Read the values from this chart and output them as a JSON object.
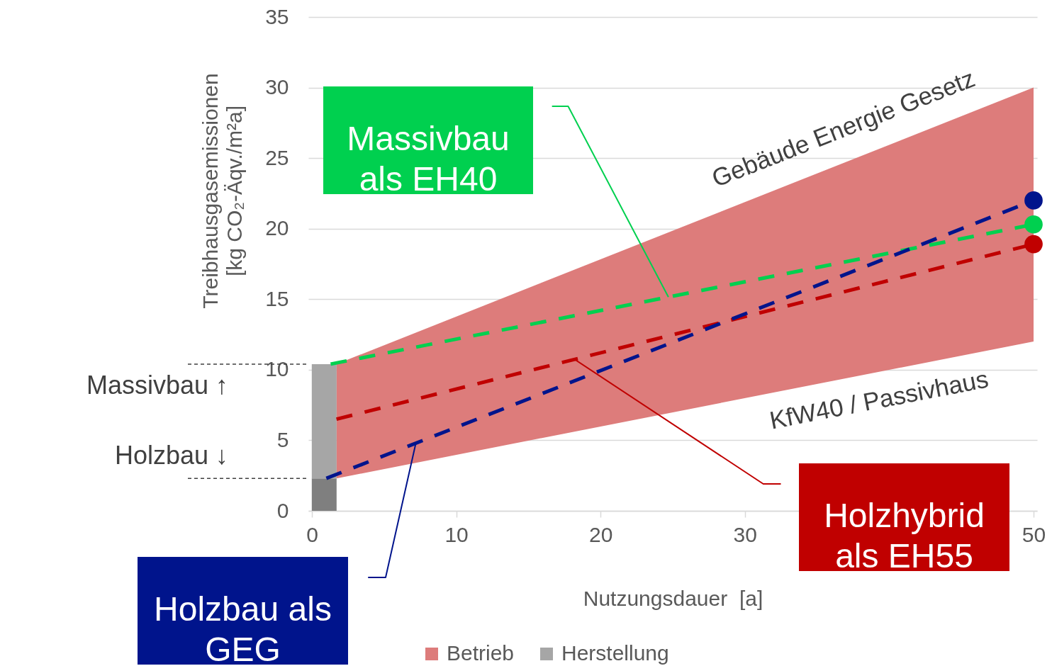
{
  "chart_data": {
    "type": "line",
    "xlabel": "Nutzungsdauer  [a]",
    "ylabel": "Treibhausgasemissionen  [kg CO₂-Äqv./m²a]",
    "xlim": [
      0,
      50
    ],
    "xticks": [
      0,
      10,
      20,
      30,
      50
    ],
    "ylim": [
      0,
      35
    ],
    "yticks": [
      0,
      5,
      10,
      15,
      20,
      25,
      30,
      35
    ],
    "grid": "y",
    "legend": "bottom",
    "stacked": true,
    "line_style": "dashed",
    "series": [
      {
        "name": "Betrieb",
        "type": "area",
        "color": "#dd7c7b",
        "x": [
          1.7,
          50
        ],
        "values": [
          null,
          null
        ],
        "lower": [
          2.3,
          12
        ],
        "upper": [
          10.4,
          30
        ]
      },
      {
        "type": "bar",
        "color": "#7f7f7f",
        "x": [
          0.85
        ],
        "values": [
          2.3
        ]
      },
      {
        "name": "Herstellung",
        "type": "bar",
        "color": "#a6a6a6",
        "x": [
          0.85
        ],
        "values": [
          8.1
        ]
      },
      {
        "name": "Massivbau als EH40",
        "color": "#00d04f",
        "x": [
          1.3,
          50
        ],
        "values": [
          10.4,
          20.3
        ]
      },
      {
        "name": "Holzhybrid als EH55",
        "color": "#c00000",
        "x": [
          1.7,
          50
        ],
        "values": [
          6.5,
          18.9
        ]
      },
      {
        "name": "Holzbau als GEG",
        "color": "#00148c",
        "x": [
          1,
          50
        ],
        "values": [
          2.3,
          22.0
        ]
      },
      {
        "type": "scatter",
        "color": "#00d04f",
        "marker": "circle",
        "x": [
          50
        ],
        "values": [
          20.3
        ]
      },
      {
        "type": "scatter",
        "color": "#c00000",
        "marker": "circle",
        "x": [
          50
        ],
        "values": [
          18.9
        ]
      },
      {
        "type": "scatter",
        "color": "#00148c",
        "marker": "circle",
        "x": [
          50
        ],
        "values": [
          22.0
        ]
      }
    ],
    "ref_lines": [
      {
        "axis": "y",
        "value": 10.4,
        "label": "Massivbau ↑",
        "color": "#404040",
        "line_style": "dashed"
      },
      {
        "axis": "y",
        "value": 2.3,
        "label": "Holzbau ↓",
        "color": "#404040",
        "line_style": "dashed"
      }
    ],
    "annotations": [
      "Gebäude Energie Gesetz",
      "KfW40 / Passivhaus"
    ]
  }
}
